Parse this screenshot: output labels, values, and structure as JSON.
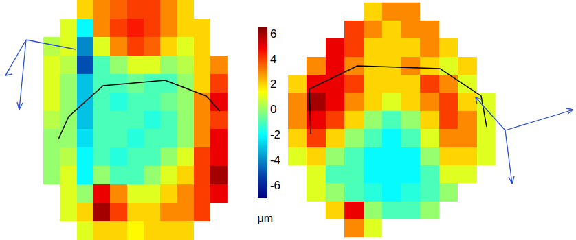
{
  "chart_data": {
    "type": "heatmap",
    "tick_labels": false,
    "panels": [
      {
        "z": [
          [
            null,
            null,
            2,
            3,
            3.5,
            4,
            4,
            3,
            2,
            null,
            null
          ],
          [
            null,
            1,
            -2,
            3,
            4,
            4.5,
            4,
            3,
            2,
            2,
            null
          ],
          [
            0.5,
            1,
            -4,
            1,
            3,
            4,
            3.5,
            2,
            1,
            2,
            null
          ],
          [
            1,
            0.5,
            -5,
            -1,
            0,
            1,
            1,
            0,
            0.5,
            2,
            3
          ],
          [
            1,
            0,
            -3,
            -1,
            -1,
            -0.5,
            -1,
            -1,
            0,
            2,
            4
          ],
          [
            1,
            0,
            -3,
            -1,
            -1.5,
            -1,
            -1,
            -0.5,
            0,
            3,
            5
          ],
          [
            0.5,
            0,
            -3,
            -1,
            -1,
            -1,
            -1.5,
            -1,
            0,
            3,
            4
          ],
          [
            0,
            0,
            -2.5,
            -1,
            -1,
            -1.5,
            -1,
            -1,
            0,
            3,
            5
          ],
          [
            0,
            0.5,
            -2,
            -1,
            -1.5,
            -1,
            -1,
            0,
            1,
            4,
            5
          ],
          [
            0,
            1,
            -2,
            0,
            -1,
            -1,
            0,
            1,
            2,
            4,
            6
          ],
          [
            null,
            1,
            0,
            5,
            3,
            1,
            1,
            2,
            3,
            4,
            5
          ],
          [
            null,
            1,
            2,
            6,
            4,
            2,
            2,
            3,
            3,
            4,
            null
          ],
          [
            null,
            null,
            1,
            2,
            2,
            1.5,
            2,
            2,
            2,
            null,
            null
          ]
        ]
      },
      {
        "z": [
          [
            null,
            null,
            null,
            null,
            2,
            3,
            3,
            null,
            null,
            null,
            null
          ],
          [
            null,
            null,
            null,
            4,
            3,
            2,
            3,
            3,
            null,
            null,
            null
          ],
          [
            null,
            null,
            5,
            4,
            2,
            2,
            2,
            3,
            2,
            null,
            null
          ],
          [
            null,
            3,
            5,
            3,
            2,
            2,
            3,
            2,
            1,
            2,
            null
          ],
          [
            2,
            5,
            5,
            4,
            2,
            2,
            2,
            4,
            3,
            1,
            null
          ],
          [
            3,
            6,
            5,
            3,
            2,
            1,
            2,
            3,
            4,
            2,
            1
          ],
          [
            3,
            5,
            4,
            2,
            0,
            -1,
            0,
            2,
            4,
            3,
            1
          ],
          [
            2,
            4,
            2,
            0,
            -1,
            -2,
            -1,
            1,
            3,
            3,
            1
          ],
          [
            1,
            2,
            0,
            -1,
            -2,
            -2,
            -2,
            0,
            2,
            2,
            1
          ],
          [
            null,
            1,
            -1,
            -1,
            -2,
            -2,
            -2,
            -1,
            1,
            1,
            null
          ],
          [
            null,
            1,
            0,
            -1,
            -1.5,
            -2,
            -1.5,
            -1,
            0,
            null,
            null
          ],
          [
            null,
            null,
            2,
            5,
            0,
            -1,
            -1,
            0,
            null,
            null,
            null
          ],
          [
            null,
            null,
            null,
            3,
            1,
            null,
            null,
            null,
            null,
            null,
            null
          ]
        ]
      }
    ],
    "zlim": [
      -7,
      6.5
    ],
    "zticks": [
      6,
      4,
      2,
      0,
      -2,
      -4,
      -6
    ],
    "colorbar_title": "μm"
  }
}
